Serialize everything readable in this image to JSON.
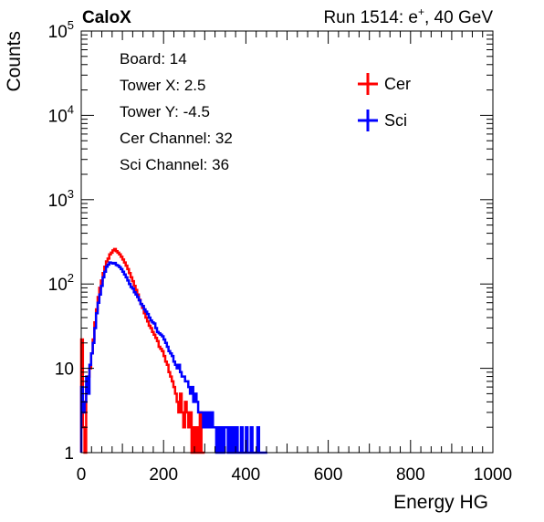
{
  "header": {
    "left_title": "CaloX",
    "right_title": {
      "prefix": "Run 1514: e",
      "superscript": "+",
      "suffix": ", 40 GeV"
    }
  },
  "info_box": {
    "lines": [
      "Board: 14",
      "Tower X: 2.5",
      "Tower Y: -4.5",
      "Cer Channel: 32",
      "Sci Channel: 36"
    ]
  },
  "chart_data": {
    "type": "line",
    "xlabel": "Energy HG",
    "ylabel": "Counts",
    "xlim": [
      0,
      1000
    ],
    "ylim": [
      1,
      100000
    ],
    "log_y": true,
    "x_ticks": [
      0,
      200,
      400,
      600,
      800,
      1000
    ],
    "y_ticks": [
      {
        "value": 1,
        "base": "1",
        "exp": ""
      },
      {
        "value": 10,
        "base": "10",
        "exp": ""
      },
      {
        "value": 100,
        "base": "10",
        "exp": "2"
      },
      {
        "value": 1000,
        "base": "10",
        "exp": "3"
      },
      {
        "value": 10000,
        "base": "10",
        "exp": "4"
      },
      {
        "value": 100000,
        "base": "10",
        "exp": "5"
      }
    ],
    "legend_position": "top-right",
    "series": [
      {
        "name": "Cer",
        "color": "#ff0000",
        "points": [
          [
            2,
            22
          ],
          [
            6,
            2
          ],
          [
            10,
            1
          ],
          [
            14,
            6
          ],
          [
            18,
            8
          ],
          [
            22,
            10
          ],
          [
            26,
            15
          ],
          [
            30,
            22
          ],
          [
            34,
            35
          ],
          [
            38,
            50
          ],
          [
            42,
            70
          ],
          [
            46,
            90
          ],
          [
            50,
            110
          ],
          [
            54,
            135
          ],
          [
            58,
            160
          ],
          [
            62,
            185
          ],
          [
            66,
            200
          ],
          [
            70,
            225
          ],
          [
            74,
            235
          ],
          [
            78,
            250
          ],
          [
            82,
            260
          ],
          [
            86,
            245
          ],
          [
            90,
            235
          ],
          [
            94,
            225
          ],
          [
            98,
            210
          ],
          [
            102,
            195
          ],
          [
            106,
            180
          ],
          [
            110,
            165
          ],
          [
            114,
            150
          ],
          [
            118,
            135
          ],
          [
            122,
            120
          ],
          [
            126,
            108
          ],
          [
            130,
            95
          ],
          [
            134,
            85
          ],
          [
            138,
            75
          ],
          [
            142,
            65
          ],
          [
            146,
            58
          ],
          [
            150,
            52
          ],
          [
            154,
            45
          ],
          [
            158,
            40
          ],
          [
            162,
            36
          ],
          [
            166,
            32
          ],
          [
            170,
            30
          ],
          [
            174,
            27
          ],
          [
            178,
            25
          ],
          [
            182,
            23
          ],
          [
            186,
            21
          ],
          [
            190,
            18
          ],
          [
            194,
            17
          ],
          [
            198,
            16
          ],
          [
            202,
            14
          ],
          [
            206,
            12
          ],
          [
            210,
            11
          ],
          [
            214,
            9
          ],
          [
            218,
            8
          ],
          [
            222,
            7
          ],
          [
            226,
            6
          ],
          [
            230,
            5
          ],
          [
            234,
            4
          ],
          [
            238,
            3
          ],
          [
            242,
            5
          ],
          [
            246,
            3
          ],
          [
            250,
            2
          ],
          [
            254,
            4
          ],
          [
            258,
            3
          ],
          [
            262,
            2
          ],
          [
            266,
            3
          ],
          [
            270,
            1
          ],
          [
            274,
            2
          ],
          [
            278,
            1
          ],
          [
            282,
            2
          ],
          [
            286,
            1
          ],
          [
            290,
            3
          ],
          [
            294,
            1
          ],
          [
            298,
            1
          ]
        ]
      },
      {
        "name": "Sci",
        "color": "#0000ff",
        "points": [
          [
            2,
            6
          ],
          [
            6,
            3
          ],
          [
            10,
            4
          ],
          [
            14,
            8
          ],
          [
            18,
            5
          ],
          [
            22,
            11
          ],
          [
            26,
            15
          ],
          [
            30,
            20
          ],
          [
            34,
            30
          ],
          [
            38,
            45
          ],
          [
            42,
            60
          ],
          [
            46,
            75
          ],
          [
            50,
            95
          ],
          [
            54,
            120
          ],
          [
            58,
            140
          ],
          [
            62,
            160
          ],
          [
            66,
            170
          ],
          [
            70,
            180
          ],
          [
            74,
            178
          ],
          [
            78,
            175
          ],
          [
            82,
            178
          ],
          [
            86,
            168
          ],
          [
            90,
            165
          ],
          [
            94,
            158
          ],
          [
            98,
            150
          ],
          [
            102,
            140
          ],
          [
            106,
            130
          ],
          [
            110,
            120
          ],
          [
            114,
            110
          ],
          [
            118,
            100
          ],
          [
            122,
            92
          ],
          [
            126,
            88
          ],
          [
            130,
            80
          ],
          [
            134,
            75
          ],
          [
            138,
            70
          ],
          [
            142,
            64
          ],
          [
            146,
            58
          ],
          [
            150,
            55
          ],
          [
            154,
            50
          ],
          [
            158,
            47
          ],
          [
            162,
            44
          ],
          [
            166,
            40
          ],
          [
            170,
            37
          ],
          [
            174,
            35
          ],
          [
            178,
            34
          ],
          [
            182,
            30
          ],
          [
            186,
            27
          ],
          [
            190,
            26
          ],
          [
            194,
            25
          ],
          [
            198,
            24
          ],
          [
            202,
            22
          ],
          [
            206,
            20
          ],
          [
            210,
            18
          ],
          [
            214,
            16
          ],
          [
            218,
            15
          ],
          [
            222,
            14
          ],
          [
            226,
            12
          ],
          [
            230,
            11
          ],
          [
            234,
            10
          ],
          [
            238,
            11
          ],
          [
            242,
            9
          ],
          [
            246,
            8
          ],
          [
            250,
            8
          ],
          [
            254,
            7
          ],
          [
            258,
            7
          ],
          [
            262,
            6
          ],
          [
            266,
            5
          ],
          [
            270,
            6
          ],
          [
            274,
            4
          ],
          [
            278,
            5
          ],
          [
            282,
            4
          ],
          [
            286,
            3
          ],
          [
            290,
            3
          ],
          [
            294,
            3
          ],
          [
            298,
            2
          ],
          [
            302,
            3
          ],
          [
            306,
            2
          ],
          [
            310,
            3
          ],
          [
            314,
            2
          ],
          [
            318,
            3
          ],
          [
            322,
            2
          ],
          [
            326,
            2
          ],
          [
            330,
            1
          ],
          [
            334,
            2
          ],
          [
            338,
            1
          ],
          [
            342,
            2
          ],
          [
            346,
            1
          ],
          [
            350,
            2
          ],
          [
            354,
            2
          ],
          [
            358,
            1
          ],
          [
            362,
            2
          ],
          [
            366,
            1
          ],
          [
            370,
            2
          ],
          [
            374,
            1
          ],
          [
            378,
            2
          ],
          [
            382,
            1
          ],
          [
            386,
            1
          ],
          [
            390,
            2
          ],
          [
            394,
            1
          ],
          [
            398,
            1
          ],
          [
            402,
            2
          ],
          [
            406,
            1
          ],
          [
            410,
            1
          ],
          [
            414,
            2
          ],
          [
            418,
            1
          ],
          [
            422,
            1
          ],
          [
            426,
            1
          ],
          [
            430,
            2
          ],
          [
            434,
            1
          ],
          [
            438,
            1
          ],
          [
            442,
            1
          ],
          [
            446,
            1
          ],
          [
            450,
            1
          ]
        ]
      }
    ]
  }
}
